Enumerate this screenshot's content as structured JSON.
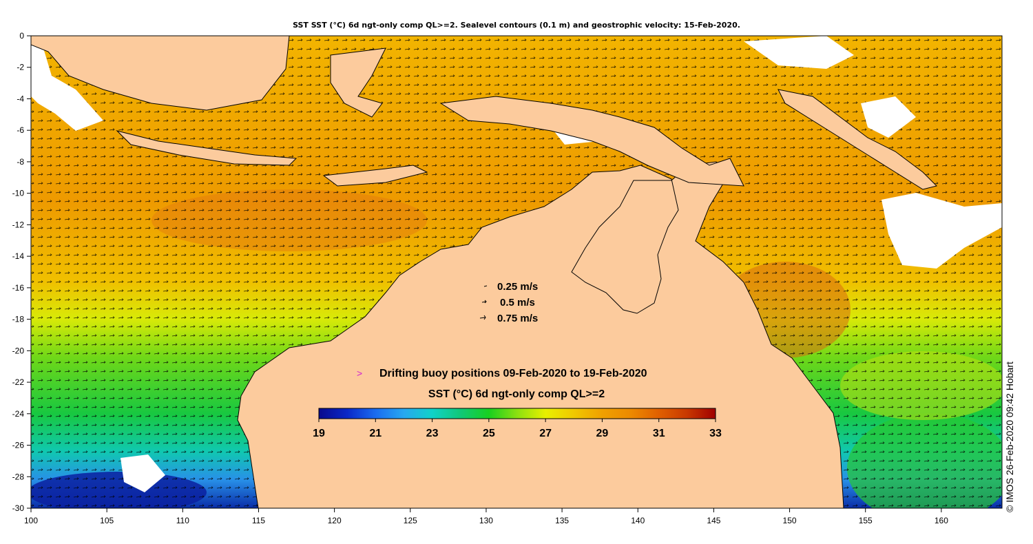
{
  "title": "SST SST (°C) 6d ngt-only comp QL>=2. Sealevel contours (0.1 m) and geostrophic velocity: 15-Feb-2020.",
  "axes": {
    "x_ticks": [
      "100",
      "105",
      "110",
      "115",
      "120",
      "125",
      "130",
      "135",
      "140",
      "145",
      "150",
      "155",
      "160"
    ],
    "x_values": [
      100,
      105,
      110,
      115,
      120,
      125,
      130,
      135,
      140,
      145,
      150,
      155,
      160
    ],
    "x_range": [
      100,
      164
    ],
    "y_ticks": [
      "0",
      "-2",
      "-4",
      "-6",
      "-8",
      "-10",
      "-12",
      "-14",
      "-16",
      "-18",
      "-20",
      "-22",
      "-24",
      "-26",
      "-28",
      "-30"
    ],
    "y_values": [
      0,
      -2,
      -4,
      -6,
      -8,
      -10,
      -12,
      -14,
      -16,
      -18,
      -20,
      -22,
      -24,
      -26,
      -28,
      -30
    ],
    "y_range": [
      -30,
      0
    ]
  },
  "velocity_legend": [
    {
      "label": "0.25 m/s"
    },
    {
      "label": "0.5 m/s"
    },
    {
      "label": "0.75 m/s"
    }
  ],
  "buoy_legend": {
    "symbol": ">",
    "symbol_color": "#d020d0",
    "label": "Drifting buoy positions 09-Feb-2020 to 19-Feb-2020"
  },
  "colorbar": {
    "title": "SST (°C) 6d ngt-only comp QL>=2",
    "tick_labels": [
      "19",
      "21",
      "23",
      "25",
      "27",
      "29",
      "31",
      "33"
    ],
    "min": 19,
    "max": 33,
    "colors": [
      "#0a0a8c",
      "#0a28c8",
      "#1a6cf0",
      "#28a8f0",
      "#10d2c8",
      "#10c878",
      "#18d020",
      "#8ce010",
      "#e8f000",
      "#f0c800",
      "#f0a000",
      "#ec8a00",
      "#e06000",
      "#c83800",
      "#a00000"
    ]
  },
  "credit": "© IMOS 26-Feb-2020 09:42 Hobart",
  "colors": {
    "land": "#fccb9d",
    "sea_warm": "#f0a000",
    "sea_hot": "#d86a10",
    "sea_mid": "#e8e400",
    "sea_cool": "#18c830",
    "sea_cold": "#0a50c8",
    "cloud": "#ffffff"
  }
}
